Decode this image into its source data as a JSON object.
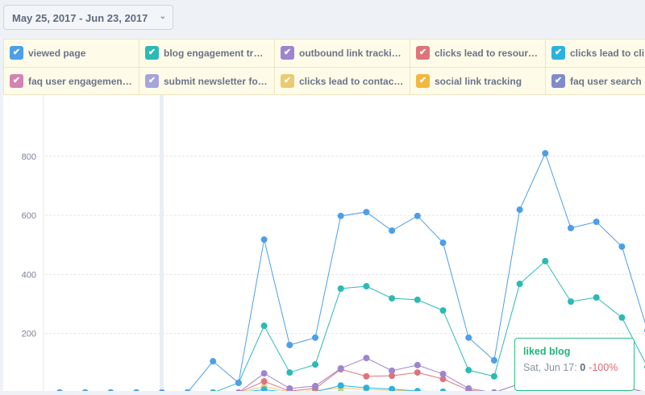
{
  "date_range": {
    "label": "May 25, 2017 - Jun 23, 2017"
  },
  "legend": [
    {
      "label": "viewed page",
      "color": "#4c9fe8"
    },
    {
      "label": "blog engagement tr…",
      "color": "#2bbab4"
    },
    {
      "label": "outbound link tracki…",
      "color": "#9d85cf"
    },
    {
      "label": "clicks lead to resour…",
      "color": "#de7479"
    },
    {
      "label": "clicks lead to cli",
      "color": "#2bb3e0"
    },
    {
      "label": "faq user engagemen…",
      "color": "#d384b2"
    },
    {
      "label": "submit newsletter fo…",
      "color": "#a3a5dc"
    },
    {
      "label": "clicks lead to contac…",
      "color": "#e9cb72"
    },
    {
      "label": "social link tracking",
      "color": "#f2b83e"
    },
    {
      "label": "faq user search",
      "color": "#7e8ccc"
    }
  ],
  "chart_data": {
    "type": "line",
    "y_ticks": [
      200,
      400,
      600,
      800
    ],
    "ylim": [
      0,
      1000
    ],
    "grid": true,
    "series": [
      {
        "color": "#4c9fe8",
        "values": [
          0,
          0,
          0,
          0,
          0,
          0,
          106,
          33,
          518,
          161,
          186,
          598,
          611,
          548,
          598,
          507,
          186,
          109,
          619,
          810,
          557,
          578,
          494,
          210
        ]
      },
      {
        "color": "#2bbab4",
        "values": [
          0,
          0,
          0,
          0,
          0,
          0,
          0,
          33,
          226,
          68,
          95,
          352,
          360,
          319,
          314,
          278,
          76,
          55,
          368,
          445,
          308,
          322,
          254,
          87
        ]
      },
      {
        "color": "#9d85cf",
        "values": [
          0,
          0,
          0,
          0,
          0,
          0,
          0,
          0,
          65,
          14,
          22,
          82,
          117,
          74,
          93,
          63,
          14,
          0,
          30,
          50,
          40,
          38,
          20,
          0
        ]
      },
      {
        "color": "#de7479",
        "values": [
          0,
          0,
          0,
          0,
          0,
          0,
          0,
          0,
          38,
          5,
          14,
          79,
          55,
          57,
          68,
          46,
          8,
          0,
          30,
          45,
          38,
          35,
          19,
          0
        ]
      },
      {
        "color": "#2bb3e0",
        "values": [
          0,
          0,
          0,
          0,
          0,
          0,
          0,
          0,
          10,
          0,
          3,
          24,
          16,
          12,
          5,
          3,
          0,
          0,
          5,
          6,
          4,
          3,
          2,
          0
        ]
      },
      {
        "color": "#e9cb72",
        "values": [
          0,
          0,
          0,
          0,
          0,
          0,
          0,
          0,
          20,
          3,
          6,
          16,
          10,
          8,
          4,
          2,
          0,
          0,
          3,
          4,
          3,
          2,
          1,
          0
        ]
      },
      {
        "color": "#1fbf83",
        "name": "liked blog",
        "values": [
          0,
          0,
          0,
          0,
          0,
          0,
          0,
          0,
          0,
          0,
          0,
          0,
          0,
          0,
          0,
          0,
          0,
          0,
          0,
          0,
          0,
          0,
          0,
          0
        ]
      }
    ]
  },
  "tooltip": {
    "title": "liked blog",
    "date": "Sat, Jun 17:",
    "value": "0",
    "change": "-100%"
  }
}
